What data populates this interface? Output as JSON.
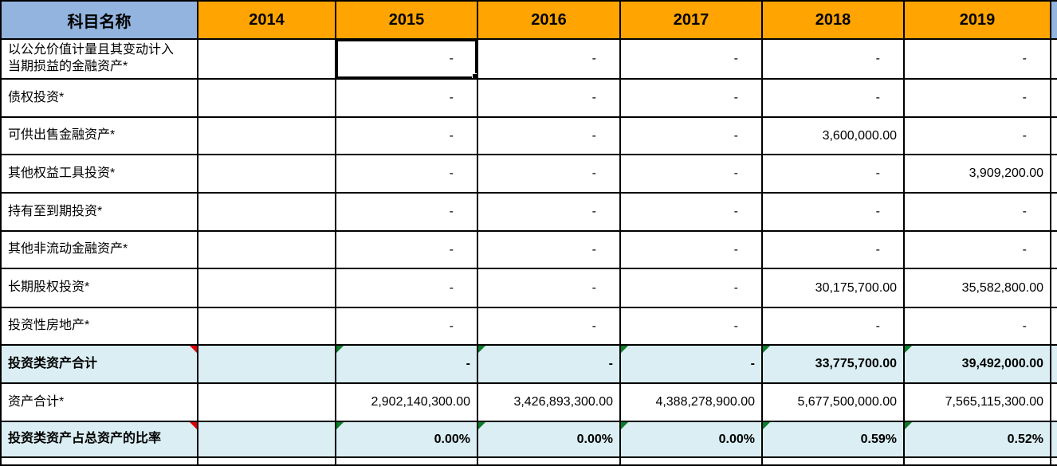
{
  "header": {
    "subject_label": "科目名称",
    "years": [
      "2014",
      "2015",
      "2016",
      "2017",
      "2018",
      "2019"
    ]
  },
  "rows": [
    {
      "label": "以公允价值计量且其变动计入\n当期损益的金融资产*",
      "values": [
        "",
        "-",
        "-",
        "-",
        "-",
        "-"
      ],
      "highlight": false
    },
    {
      "label": "债权投资*",
      "values": [
        "",
        "-",
        "-",
        "-",
        "-",
        "-"
      ],
      "highlight": false
    },
    {
      "label": "可供出售金融资产*",
      "values": [
        "",
        "-",
        "-",
        "-",
        "3,600,000.00",
        "-"
      ],
      "highlight": false
    },
    {
      "label": "其他权益工具投资*",
      "values": [
        "",
        "-",
        "-",
        "-",
        "-",
        "3,909,200.00"
      ],
      "highlight": false
    },
    {
      "label": "持有至到期投资*",
      "values": [
        "",
        "-",
        "-",
        "-",
        "-",
        "-"
      ],
      "highlight": false
    },
    {
      "label": "其他非流动金融资产*",
      "values": [
        "",
        "-",
        "-",
        "-",
        "-",
        "-"
      ],
      "highlight": false
    },
    {
      "label": "长期股权投资*",
      "values": [
        "",
        "-",
        "-",
        "-",
        "30,175,700.00",
        "35,582,800.00"
      ],
      "highlight": false
    },
    {
      "label": "投资性房地产*",
      "values": [
        "",
        "-",
        "-",
        "-",
        "-",
        "-"
      ],
      "highlight": false
    },
    {
      "label": "投资类资产合计",
      "values": [
        "",
        "-",
        "-",
        "-",
        "33,775,700.00",
        "39,492,000.00"
      ],
      "highlight": true
    },
    {
      "label": "资产合计*",
      "values": [
        "",
        "2,902,140,300.00",
        "3,426,893,300.00",
        "4,388,278,900.00",
        "5,677,500,000.00",
        "7,565,115,300.00"
      ],
      "highlight": false
    },
    {
      "label": "投资类资产占总资产的比率",
      "values": [
        "",
        "0.00%",
        "0.00%",
        "0.00%",
        "0.59%",
        "0.52%"
      ],
      "highlight": true
    }
  ],
  "selected_cell": {
    "row_index": 0,
    "year": "2015"
  },
  "indicators": {
    "comment_rows": [
      "投资类资产合计",
      "投资类资产占总资产的比率"
    ],
    "formula_warning_years": [
      "2015",
      "2016",
      "2017",
      "2018",
      "2019"
    ]
  },
  "colors": {
    "header_orange": "#FFA400",
    "header_blue": "#92B4DE",
    "band_blue": "#DAEEF3",
    "comment_red": "#E00000",
    "warning_green": "#0B7D2A",
    "edge_yellow": "#FFFF00"
  }
}
